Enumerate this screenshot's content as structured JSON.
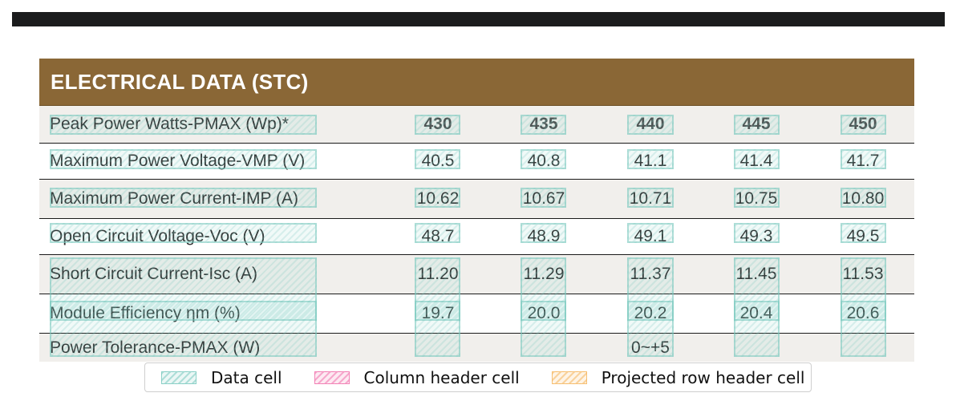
{
  "table": {
    "title": "ELECTRICAL DATA (STC)",
    "rows": [
      {
        "label": "Peak Power Watts-PMAX (Wp)*",
        "values": [
          "430",
          "435",
          "440",
          "445",
          "450"
        ]
      },
      {
        "label": "Maximum Power Voltage-VMP (V)",
        "values": [
          "40.5",
          "40.8",
          "41.1",
          "41.4",
          "41.7"
        ]
      },
      {
        "label": "Maximum Power Current-IMP (A)",
        "values": [
          "10.62",
          "10.67",
          "10.71",
          "10.75",
          "10.80"
        ]
      },
      {
        "label": "Open Circuit Voltage-Voc (V)",
        "values": [
          "48.7",
          "48.9",
          "49.1",
          "49.3",
          "49.5"
        ]
      },
      {
        "label": "Short Circuit Current-Isc (A)",
        "values": [
          "11.20",
          "11.29",
          "11.37",
          "11.45",
          "11.53"
        ]
      },
      {
        "label": "Module Efficiency ηm (%)",
        "values": [
          "19.7",
          "20.0",
          "20.2",
          "20.4",
          "20.6"
        ]
      },
      {
        "label": "Power Tolerance-PMAX (W)",
        "values": [
          "",
          "",
          "0~+5",
          "",
          ""
        ]
      }
    ]
  },
  "legend": {
    "data_cell": "Data cell",
    "column_header_cell": "Column header cell",
    "projected_row_header_cell": "Projected row header cell"
  },
  "colors": {
    "title_bar": "#8a6736",
    "data_cell_overlay": "#78c8be",
    "column_header_overlay": "#f06eaa",
    "projected_row_header_overlay": "#f5b45a"
  }
}
